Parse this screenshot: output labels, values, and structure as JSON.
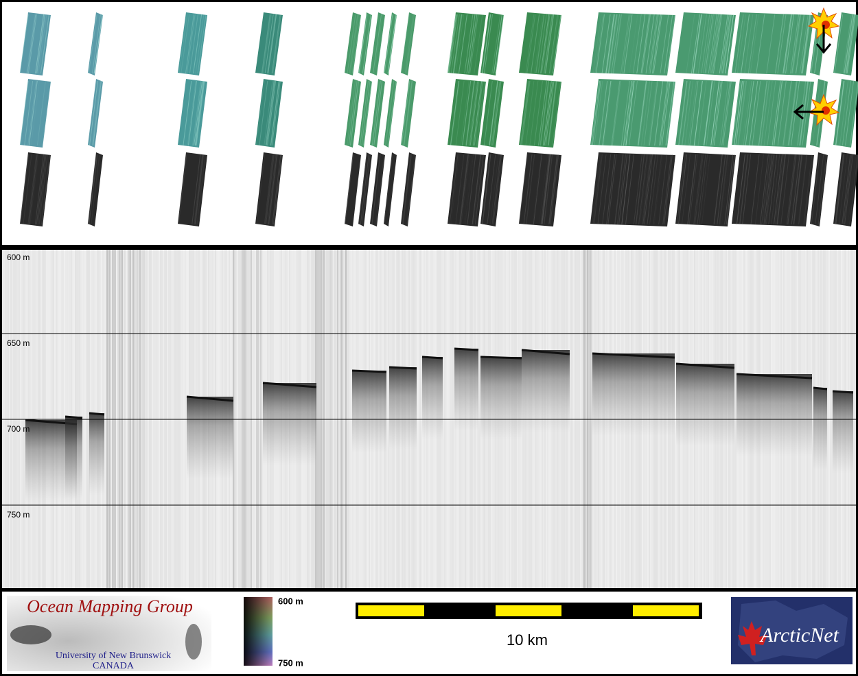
{
  "sonar_panel": {
    "depth_labels": [
      "600 m",
      "650 m",
      "700 m",
      "750 m"
    ]
  },
  "footer": {
    "logo_title": "Ocean Mapping Group",
    "logo_subtitle": "University of New Brunswick",
    "logo_country": "CANADA",
    "colorbar_labels": [
      "600 m",
      "750 m"
    ],
    "scale_label": "10 km",
    "partner_logo": "ArcticNet"
  }
}
